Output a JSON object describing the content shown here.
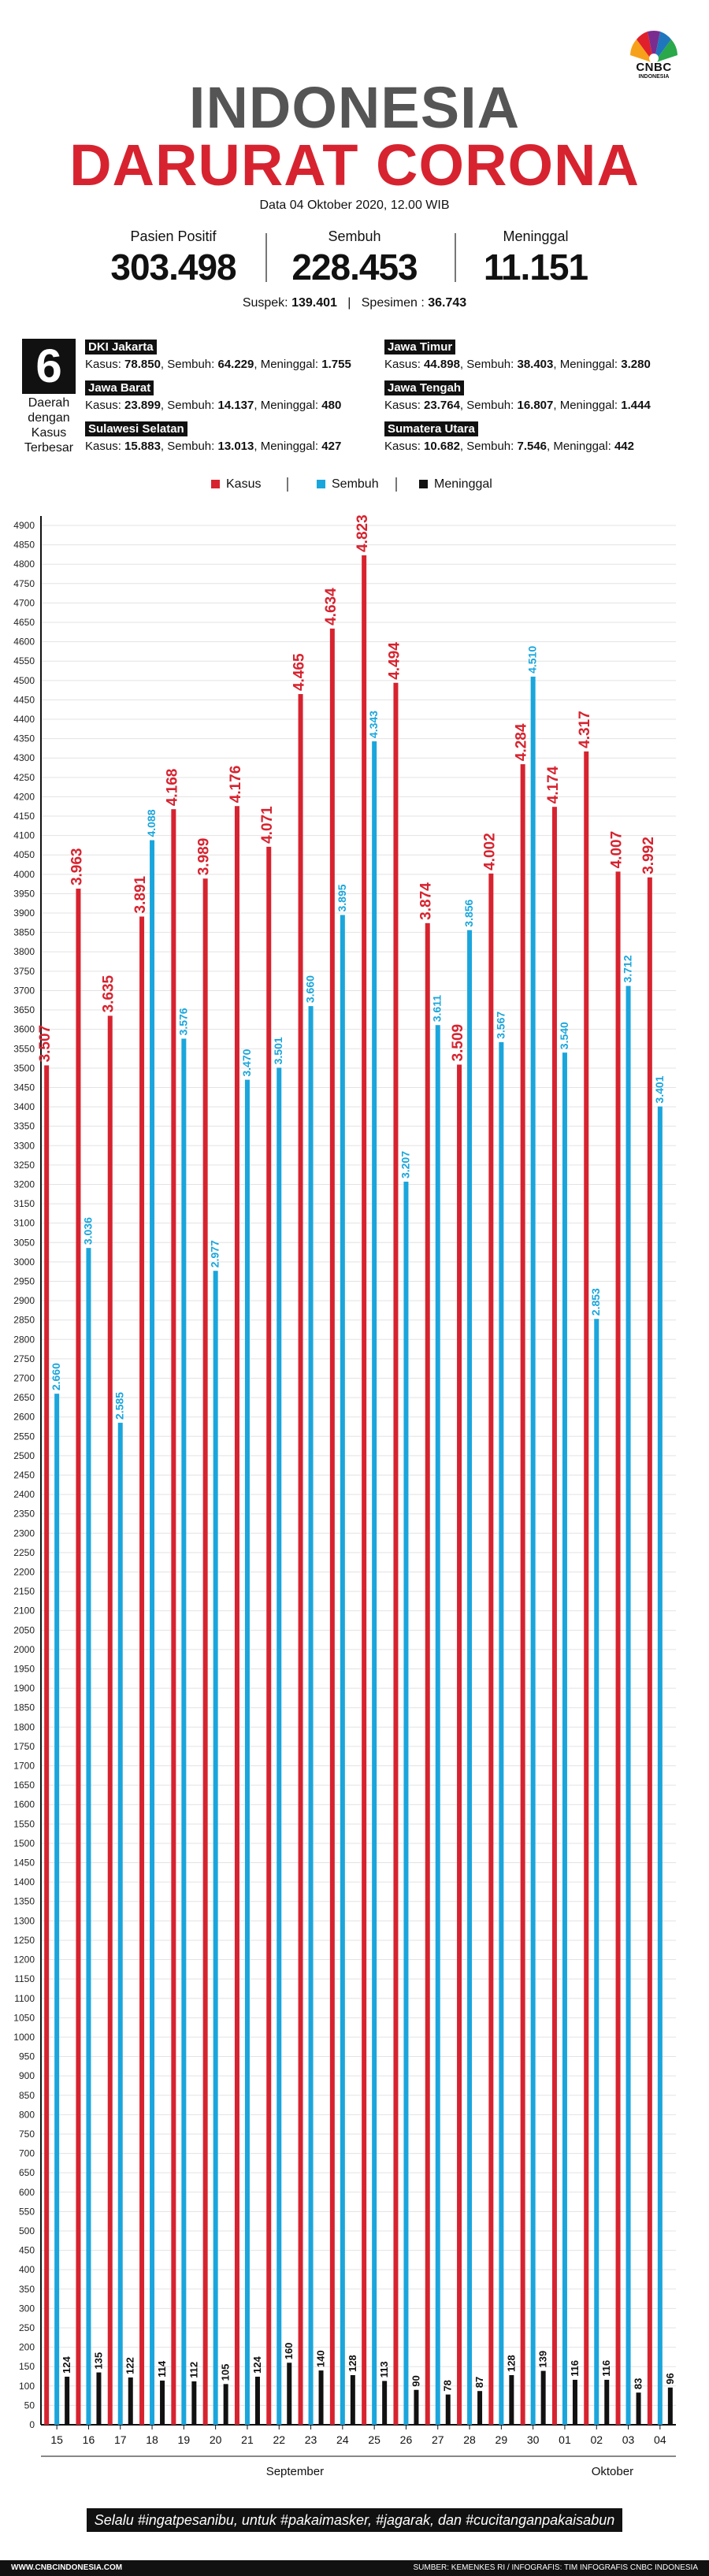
{
  "brand": {
    "name": "CNBC",
    "sub": "INDONESIA"
  },
  "header": {
    "title_line1": "INDONESIA",
    "title_line2": "DARURAT CORONA",
    "date": "Data 04 Oktober 2020, 12.00 WIB"
  },
  "stats": [
    {
      "label": "Pasien Positif",
      "value": "303.498"
    },
    {
      "label": "Sembuh",
      "value": "228.453"
    },
    {
      "label": "Meninggal",
      "value": "11.151"
    }
  ],
  "suspek": {
    "suspek_label": "Suspek:",
    "suspek_value": "139.401",
    "spesimen_label": "Spesimen :",
    "spesimen_value": "36.743"
  },
  "top_regions": {
    "count": "6",
    "caption": [
      "Daerah",
      "dengan",
      "Kasus",
      "Terbesar"
    ],
    "items": [
      {
        "name": "DKI Jakarta",
        "kasus": "78.850",
        "sembuh": "64.229",
        "meninggal": "1.755"
      },
      {
        "name": "Jawa Timur",
        "kasus": "44.898",
        "sembuh": "38.403",
        "meninggal": "3.280"
      },
      {
        "name": "Jawa Barat",
        "kasus": "23.899",
        "sembuh": "14.137",
        "meninggal": "480"
      },
      {
        "name": "Jawa Tengah",
        "kasus": "23.764",
        "sembuh": "16.807",
        "meninggal": "1.444"
      },
      {
        "name": "Sulawesi Selatan",
        "kasus": "15.883",
        "sembuh": "13.013",
        "meninggal": "427"
      },
      {
        "name": "Sumatera Utara",
        "kasus": "10.682",
        "sembuh": "7.546",
        "meninggal": "442"
      }
    ],
    "labels": {
      "kasus": "Kasus:",
      "sembuh": "Sembuh:",
      "meninggal": "Meninggal:"
    }
  },
  "colors": {
    "kasus": "#d7232f",
    "sembuh": "#1aa6dc",
    "meninggal": "#111111",
    "title_grey": "#555555"
  },
  "chart_data": {
    "type": "bar",
    "legend": [
      "Kasus",
      "Sembuh",
      "Meninggal"
    ],
    "categories": [
      "15",
      "16",
      "17",
      "18",
      "19",
      "20",
      "21",
      "22",
      "23",
      "24",
      "25",
      "26",
      "27",
      "28",
      "29",
      "30",
      "01",
      "02",
      "03",
      "04"
    ],
    "month_labels": [
      {
        "label": "September",
        "from": "15",
        "to": "30"
      },
      {
        "label": "Oktober",
        "from": "01",
        "to": "04"
      }
    ],
    "series": [
      {
        "name": "Kasus",
        "values": [
          3507,
          3963,
          3635,
          3891,
          4168,
          3989,
          4176,
          4071,
          4465,
          4634,
          4823,
          4494,
          3874,
          3509,
          4002,
          4284,
          4174,
          4317,
          4007,
          3992
        ],
        "labels": [
          "3.507",
          "3.963",
          "3.635",
          "3.891",
          "4.168",
          "3.989",
          "4.176",
          "4.071",
          "4.465",
          "4.634",
          "4.823",
          "4.494",
          "3.874",
          "3.509",
          "4.002",
          "4.284",
          "4.174",
          "4.317",
          "4.007",
          "3.992"
        ]
      },
      {
        "name": "Sembuh",
        "values": [
          2660,
          3036,
          2585,
          4088,
          3576,
          2977,
          3470,
          3501,
          3660,
          3895,
          4343,
          3207,
          3611,
          3856,
          3567,
          4510,
          3540,
          2853,
          3712,
          3401
        ],
        "labels": [
          "2.660",
          "3.036",
          "2.585",
          "4.088",
          "3.576",
          "2.977",
          "3.470",
          "3.501",
          "3.660",
          "3.895",
          "4.343",
          "3.207",
          "3.611",
          "3.856",
          "3.567",
          "4.510",
          "3.540",
          "2.853",
          "3.712",
          "3.401"
        ]
      },
      {
        "name": "Meninggal",
        "values": [
          124,
          135,
          122,
          114,
          112,
          105,
          124,
          160,
          140,
          128,
          113,
          90,
          78,
          87,
          128,
          139,
          116,
          116,
          83,
          96
        ],
        "labels": [
          "124",
          "135",
          "122",
          "114",
          "112",
          "105",
          "124",
          "160",
          "140",
          "128",
          "113",
          "90",
          "78",
          "87",
          "128",
          "139",
          "116",
          "116",
          "83",
          "96"
        ]
      }
    ],
    "ylim": [
      0,
      4900
    ],
    "ytick_step": 50,
    "grid": true
  },
  "slogan": "Selalu #ingatpesanibu, untuk #pakaimasker, #jagarak, dan #cucitanganpakaisabun",
  "footer": {
    "website": "WWW.CNBCINDONESIA.COM",
    "source": "SUMBER: KEMENKES RI / INFOGRAFIS: TIM INFOGRAFIS CNBC INDONESIA"
  }
}
